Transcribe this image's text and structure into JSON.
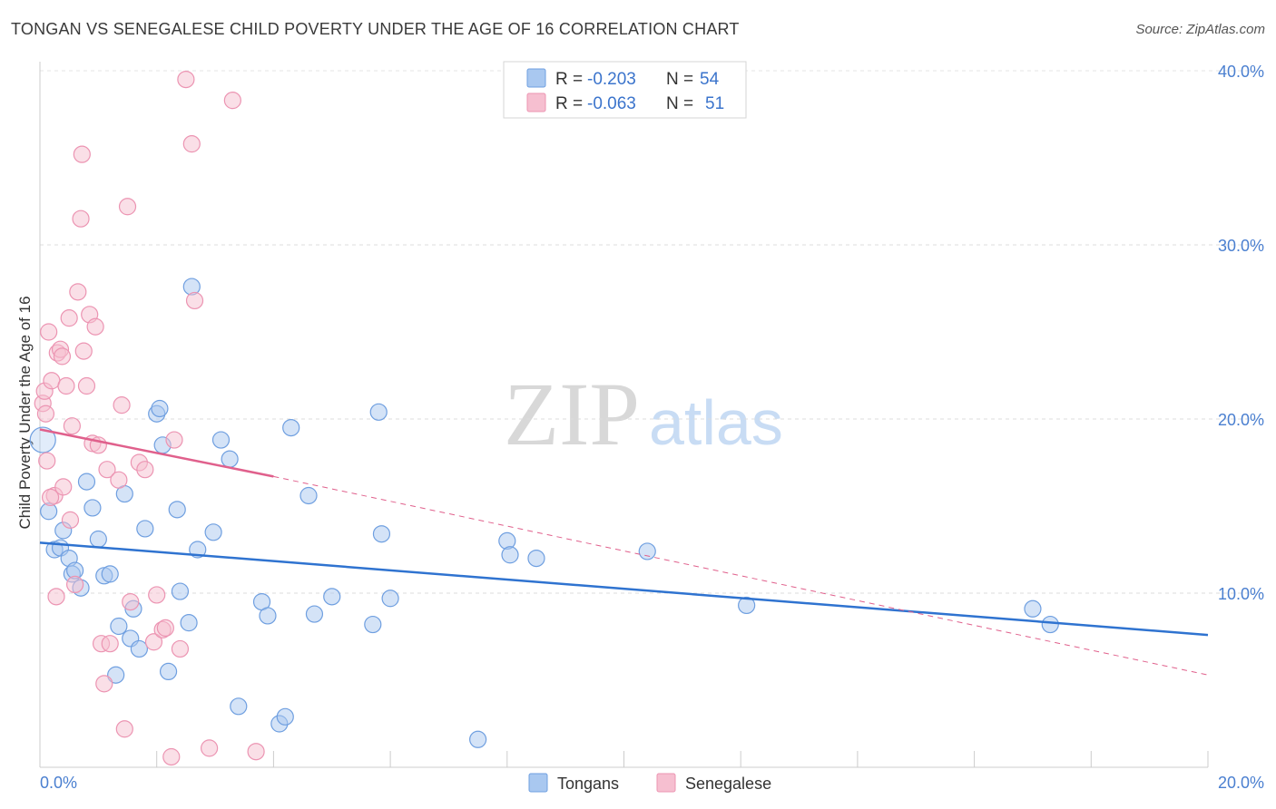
{
  "title": "TONGAN VS SENEGALESE CHILD POVERTY UNDER THE AGE OF 16 CORRELATION CHART",
  "source": "Source: ZipAtlas.com",
  "watermark": {
    "zip": "ZIP",
    "atlas": "atlas"
  },
  "colors": {
    "tongan_fill": "#a9c8f0",
    "tongan_stroke": "#6f9fe0",
    "tongan_line": "#2f73d0",
    "senegalese_fill": "#f6bfd0",
    "senegalese_stroke": "#ec94b2",
    "senegalese_line": "#e0608c",
    "tick_text": "#4a7fd0"
  },
  "legend": {
    "r_label": "R =",
    "n_label": "N =",
    "rows": [
      {
        "series": "tongan",
        "r": "-0.203",
        "n": "54"
      },
      {
        "series": "senegalese",
        "r": "-0.063",
        "n": "51"
      }
    ]
  },
  "chart_data": {
    "type": "scatter",
    "xlabel": "",
    "ylabel": "Child Poverty Under the Age of 16",
    "xlim": [
      0,
      20
    ],
    "ylim": [
      0,
      40
    ],
    "x_tick_labels": [
      "0.0%",
      "20.0%"
    ],
    "y_ticks": [
      10,
      20,
      30,
      40
    ],
    "y_tick_labels": [
      "10.0%",
      "20.0%",
      "30.0%",
      "40.0%"
    ],
    "grid": true,
    "series": [
      {
        "name": "Tongans",
        "trend": {
          "x0": 0,
          "y0": 12.9,
          "x1": 20,
          "y1": 7.6
        },
        "points": [
          [
            0.15,
            14.7
          ],
          [
            0.25,
            12.5
          ],
          [
            0.35,
            12.6
          ],
          [
            0.4,
            13.6
          ],
          [
            0.5,
            12.0
          ],
          [
            0.55,
            11.1
          ],
          [
            0.6,
            11.3
          ],
          [
            0.7,
            10.3
          ],
          [
            0.8,
            16.4
          ],
          [
            0.9,
            14.9
          ],
          [
            1.0,
            13.1
          ],
          [
            1.1,
            11.0
          ],
          [
            1.2,
            11.1
          ],
          [
            1.3,
            5.3
          ],
          [
            1.35,
            8.1
          ],
          [
            1.45,
            15.7
          ],
          [
            1.55,
            7.4
          ],
          [
            1.6,
            9.1
          ],
          [
            1.7,
            6.8
          ],
          [
            1.8,
            13.7
          ],
          [
            2.0,
            20.3
          ],
          [
            2.05,
            20.6
          ],
          [
            2.1,
            18.5
          ],
          [
            2.2,
            5.5
          ],
          [
            2.35,
            14.8
          ],
          [
            2.4,
            10.1
          ],
          [
            2.55,
            8.3
          ],
          [
            2.6,
            27.6
          ],
          [
            2.7,
            12.5
          ],
          [
            2.97,
            13.5
          ],
          [
            3.1,
            18.8
          ],
          [
            3.25,
            17.7
          ],
          [
            3.4,
            3.5
          ],
          [
            3.8,
            9.5
          ],
          [
            3.9,
            8.7
          ],
          [
            4.1,
            2.5
          ],
          [
            4.2,
            2.9
          ],
          [
            4.3,
            19.5
          ],
          [
            4.6,
            15.6
          ],
          [
            4.7,
            8.8
          ],
          [
            5.0,
            9.8
          ],
          [
            5.7,
            8.2
          ],
          [
            5.8,
            20.4
          ],
          [
            5.85,
            13.4
          ],
          [
            6.0,
            9.7
          ],
          [
            7.5,
            1.6
          ],
          [
            8.0,
            13.0
          ],
          [
            8.05,
            12.2
          ],
          [
            8.5,
            12.0
          ],
          [
            10.4,
            12.4
          ],
          [
            12.1,
            9.3
          ],
          [
            17.0,
            9.1
          ],
          [
            17.3,
            8.2
          ],
          [
            0.05,
            18.8
          ]
        ]
      },
      {
        "name": "Senegalese",
        "trend": {
          "x0": 0,
          "y0": 19.4,
          "x1": 4.0,
          "y1": 16.7
        },
        "trend_extension": {
          "x0": 4.0,
          "y0": 16.7,
          "x1": 20,
          "y1": 5.3
        },
        "points": [
          [
            0.05,
            20.9
          ],
          [
            0.08,
            21.6
          ],
          [
            0.1,
            20.3
          ],
          [
            0.12,
            17.6
          ],
          [
            0.15,
            25.0
          ],
          [
            0.2,
            22.2
          ],
          [
            0.25,
            15.6
          ],
          [
            0.28,
            9.8
          ],
          [
            0.3,
            23.8
          ],
          [
            0.35,
            24.0
          ],
          [
            0.38,
            23.6
          ],
          [
            0.4,
            16.1
          ],
          [
            0.45,
            21.9
          ],
          [
            0.5,
            25.8
          ],
          [
            0.52,
            14.2
          ],
          [
            0.55,
            19.6
          ],
          [
            0.6,
            10.5
          ],
          [
            0.65,
            27.3
          ],
          [
            0.7,
            31.5
          ],
          [
            0.72,
            35.2
          ],
          [
            0.75,
            23.9
          ],
          [
            0.8,
            21.9
          ],
          [
            0.85,
            26.0
          ],
          [
            0.9,
            18.6
          ],
          [
            0.95,
            25.3
          ],
          [
            1.0,
            18.5
          ],
          [
            1.05,
            7.1
          ],
          [
            1.1,
            4.8
          ],
          [
            1.15,
            17.1
          ],
          [
            1.2,
            7.1
          ],
          [
            1.35,
            16.5
          ],
          [
            1.4,
            20.8
          ],
          [
            1.45,
            2.2
          ],
          [
            1.5,
            32.2
          ],
          [
            1.55,
            9.5
          ],
          [
            1.7,
            17.5
          ],
          [
            1.8,
            17.1
          ],
          [
            1.95,
            7.2
          ],
          [
            2.0,
            9.9
          ],
          [
            2.1,
            7.9
          ],
          [
            2.15,
            8.0
          ],
          [
            2.25,
            0.6
          ],
          [
            2.3,
            18.8
          ],
          [
            2.4,
            6.8
          ],
          [
            2.5,
            39.5
          ],
          [
            2.6,
            35.8
          ],
          [
            2.65,
            26.8
          ],
          [
            2.9,
            1.1
          ],
          [
            3.3,
            38.3
          ],
          [
            3.7,
            0.9
          ],
          [
            0.18,
            15.5
          ]
        ]
      }
    ]
  },
  "bottom_legend": [
    {
      "series": "tongan",
      "label": "Tongans"
    },
    {
      "series": "senegalese",
      "label": "Senegalese"
    }
  ]
}
